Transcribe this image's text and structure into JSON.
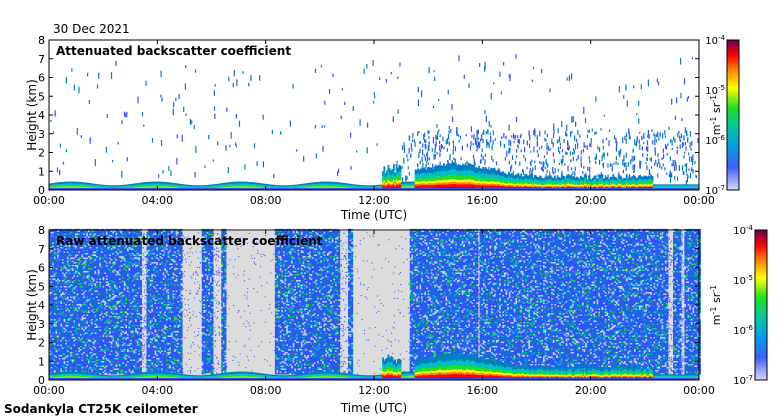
{
  "date": "30 Dec 2021",
  "footer": "Sodankyla CT25K ceilometer",
  "chart_data": [
    {
      "type": "heatmap",
      "title": "Attenuated backscatter coefficient",
      "xlabel": "Time (UTC)",
      "ylabel": "Height (km)",
      "x_ticks": [
        "00:00",
        "04:00",
        "08:00",
        "12:00",
        "16:00",
        "20:00",
        "00:00"
      ],
      "y_ticks": [
        0,
        1,
        2,
        3,
        4,
        5,
        6,
        7,
        8
      ],
      "xlim_hours": [
        0,
        24
      ],
      "ylim": [
        0,
        8
      ],
      "colorbar": {
        "scale": "log",
        "range": [
          1e-07,
          0.0001
        ],
        "ticks": [
          "10^-7",
          "10^-6",
          "10^-5",
          "10^-4"
        ],
        "label": "m^-1 sr^-1"
      },
      "noise_level": "low"
    },
    {
      "type": "heatmap",
      "title": "Raw attenuated backscatter coefficient",
      "xlabel": "Time (UTC)",
      "ylabel": "Height (km)",
      "x_ticks": [
        "00:00",
        "04:00",
        "08:00",
        "12:00",
        "16:00",
        "20:00",
        "00:00"
      ],
      "y_ticks": [
        0,
        1,
        2,
        3,
        4,
        5,
        6,
        7,
        8
      ],
      "xlim_hours": [
        0,
        24
      ],
      "ylim": [
        0,
        8
      ],
      "colorbar": {
        "scale": "log",
        "range": [
          1e-07,
          0.0001
        ],
        "ticks": [
          "10^-7",
          "10^-6",
          "10^-5",
          "10^-4"
        ],
        "label": "m^-1 sr^-1"
      },
      "noise_level": "high"
    }
  ],
  "colors": {
    "background_gray": "#dcdcdc",
    "colormap": [
      "#c8c8ff",
      "#3050ff",
      "#0080c0",
      "#00c0c0",
      "#20e020",
      "#ffff00",
      "#ff8000",
      "#ff0000",
      "#a00000",
      "#600060"
    ]
  }
}
